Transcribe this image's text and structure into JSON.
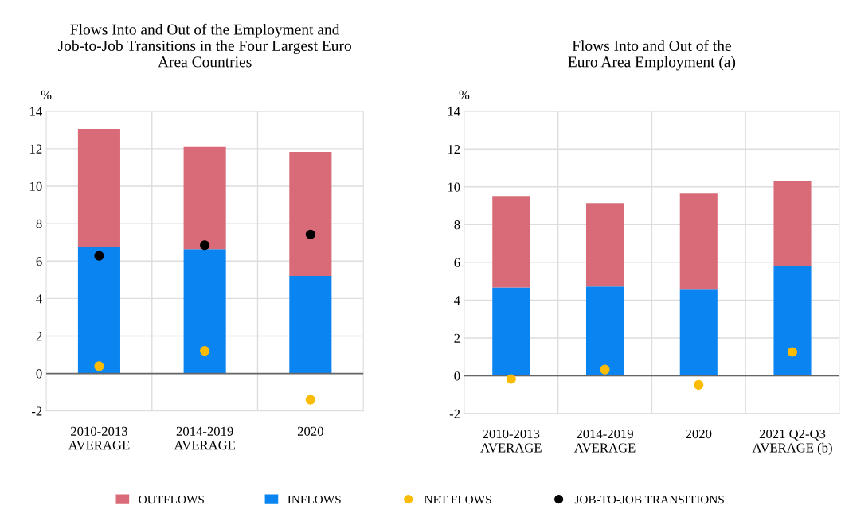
{
  "chart_data": [
    {
      "type": "bar",
      "title": "Flows Into and Out of the Employment and\nJob-to-Job Transitions in the Four Largest Euro\nArea Countries",
      "ylabel": "%",
      "stacked": true,
      "categories": [
        "2010-2013\nAVERAGE",
        "2014-2019\nAVERAGE",
        "2020"
      ],
      "ylim": [
        -2,
        14
      ],
      "yticks": [
        -2,
        0,
        2,
        4,
        6,
        8,
        10,
        12,
        14
      ],
      "grid": true,
      "legend": "bottom",
      "marker": "circle",
      "series": [
        {
          "name": "INFLOWS",
          "color": "#0a84f0",
          "values": [
            6.73,
            6.64,
            5.2
          ]
        },
        {
          "name": "OUTFLOWS",
          "color": "#d96b78",
          "values": [
            6.33,
            5.45,
            6.63
          ]
        },
        {
          "name": "NET FLOWS",
          "type": "scatter",
          "color": "#fbbc05",
          "values": [
            0.39,
            1.21,
            -1.4
          ]
        },
        {
          "name": "JOB-TO-JOB TRANSITIONS",
          "type": "scatter",
          "color": "#000000",
          "values": [
            6.28,
            6.85,
            7.42
          ]
        }
      ]
    },
    {
      "type": "bar",
      "title": "Flows Into and Out of the\nEuro Area Employment (a)",
      "ylabel": "%",
      "stacked": true,
      "categories": [
        "2010-2013\nAVERAGE",
        "2014-2019\nAVERAGE",
        "2020",
        "2021 Q2-Q3\nAVERAGE (b)"
      ],
      "ylim": [
        -2,
        14
      ],
      "yticks": [
        -2,
        0,
        2,
        4,
        6,
        8,
        10,
        12,
        14
      ],
      "grid": true,
      "marker": "circle",
      "series": [
        {
          "name": "INFLOWS",
          "color": "#0a84f0",
          "values": [
            4.67,
            4.72,
            4.6,
            5.79
          ]
        },
        {
          "name": "OUTFLOWS",
          "color": "#d96b78",
          "values": [
            4.81,
            4.42,
            5.05,
            4.54
          ]
        },
        {
          "name": "NET FLOWS",
          "type": "scatter",
          "color": "#fbbc05",
          "values": [
            -0.17,
            0.33,
            -0.48,
            1.26
          ]
        }
      ]
    }
  ]
}
